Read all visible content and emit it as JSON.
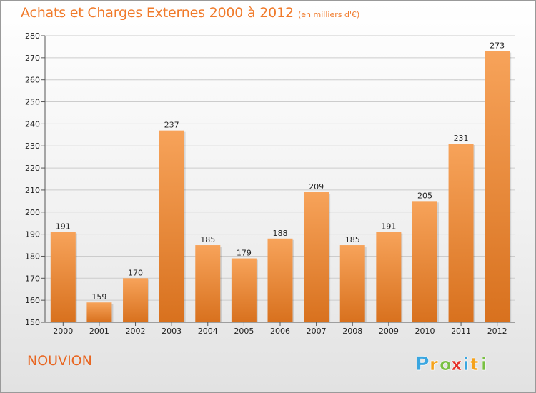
{
  "title": "Achats et Charges Externes 2000 à 2012",
  "subtitle": "(en milliers d'€)",
  "place": "NOUVION",
  "logo": {
    "letters": [
      "P",
      "r",
      "o",
      "x",
      "i",
      "t",
      "i"
    ],
    "colors": [
      "#3aa6e0",
      "#f5a21b",
      "#79c043",
      "#e4322b",
      "#3aa6e0",
      "#f5a21b",
      "#79c043"
    ]
  },
  "colors": {
    "title": "#f07a2a",
    "bar_light": "#f7a35a",
    "bar_dark": "#d8711e",
    "grid": "#cccccc"
  },
  "chart_data": {
    "type": "bar",
    "categories": [
      "2000",
      "2001",
      "2002",
      "2003",
      "2004",
      "2005",
      "2006",
      "2007",
      "2008",
      "2009",
      "2010",
      "2011",
      "2012"
    ],
    "values": [
      191,
      159,
      170,
      237,
      185,
      179,
      188,
      209,
      185,
      191,
      205,
      231,
      273
    ],
    "ylim": [
      150,
      280
    ],
    "yticks": [
      150,
      160,
      170,
      180,
      190,
      200,
      210,
      220,
      230,
      240,
      250,
      260,
      270,
      280
    ],
    "grid": true,
    "xlabel": "",
    "ylabel": ""
  }
}
